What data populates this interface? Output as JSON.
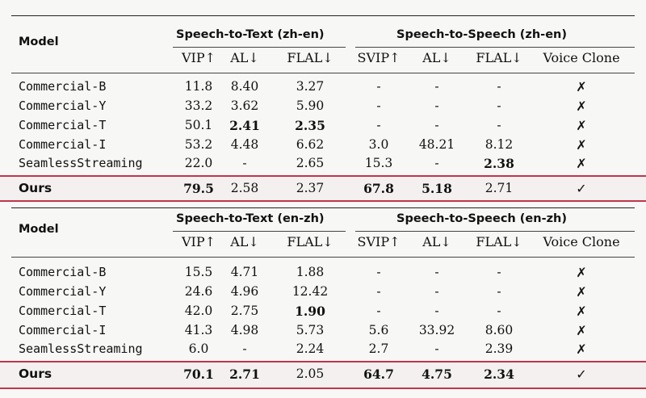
{
  "tables": [
    {
      "model_header": "Model",
      "s2t_header": "Speech-to-Text (zh-en)",
      "s2s_header": "Speech-to-Speech (zh-en)",
      "subheaders": [
        "VIP↑",
        "AL↓",
        "FLAL↓",
        "SVIP↑",
        "AL↓",
        "FLAL↓",
        "Voice Clone"
      ],
      "rows": [
        {
          "model": "Commercial-B",
          "cells": [
            "11.8",
            "8.40",
            "3.27",
            "-",
            "-",
            "-",
            "✗"
          ]
        },
        {
          "model": "Commercial-Y",
          "cells": [
            "33.2",
            "3.62",
            "5.90",
            "-",
            "-",
            "-",
            "✗"
          ]
        },
        {
          "model": "Commercial-T",
          "cells": [
            "50.1",
            "2.41",
            "2.35",
            "-",
            "-",
            "-",
            "✗"
          ]
        },
        {
          "model": "Commercial-I",
          "cells": [
            "53.2",
            "4.48",
            "6.62",
            "3.0",
            "48.21",
            "8.12",
            "✗"
          ]
        },
        {
          "model": "SeamlessStreaming",
          "cells": [
            "22.0",
            "-",
            "2.65",
            "15.3",
            "-",
            "2.38",
            "✗"
          ]
        }
      ],
      "ours": {
        "model": "Ours",
        "cells": [
          "79.5",
          "2.58",
          "2.37",
          "67.8",
          "5.18",
          "2.71",
          "✓"
        ]
      }
    },
    {
      "model_header": "Model",
      "s2t_header": "Speech-to-Text (en-zh)",
      "s2s_header": "Speech-to-Speech (en-zh)",
      "subheaders": [
        "VIP↑",
        "AL↓",
        "FLAL↓",
        "SVIP↑",
        "AL↓",
        "FLAL↓",
        "Voice Clone"
      ],
      "rows": [
        {
          "model": "Commercial-B",
          "cells": [
            "15.5",
            "4.71",
            "1.88",
            "-",
            "-",
            "-",
            "✗"
          ]
        },
        {
          "model": "Commercial-Y",
          "cells": [
            "24.6",
            "4.96",
            "12.42",
            "-",
            "-",
            "-",
            "✗"
          ]
        },
        {
          "model": "Commercial-T",
          "cells": [
            "42.0",
            "2.75",
            "1.90",
            "-",
            "-",
            "-",
            "✗"
          ]
        },
        {
          "model": "Commercial-I",
          "cells": [
            "41.3",
            "4.98",
            "5.73",
            "5.6",
            "33.92",
            "8.60",
            "✗"
          ]
        },
        {
          "model": "SeamlessStreaming",
          "cells": [
            "6.0",
            "-",
            "2.24",
            "2.7",
            "-",
            "2.39",
            "✗"
          ]
        }
      ],
      "ours": {
        "model": "Ours",
        "cells": [
          "70.1",
          "2.71",
          "2.05",
          "64.7",
          "4.75",
          "2.34",
          "✓"
        ]
      }
    }
  ],
  "bold_cells": [
    {
      "rows": [
        [
          2,
          1
        ],
        [
          2,
          2
        ],
        [
          4,
          5
        ]
      ],
      "ours": [
        0,
        3,
        4
      ]
    },
    {
      "rows": [
        [
          2,
          2
        ]
      ],
      "ours": [
        0,
        1,
        3,
        4,
        5
      ]
    }
  ],
  "highlight_color": "#c0354a"
}
